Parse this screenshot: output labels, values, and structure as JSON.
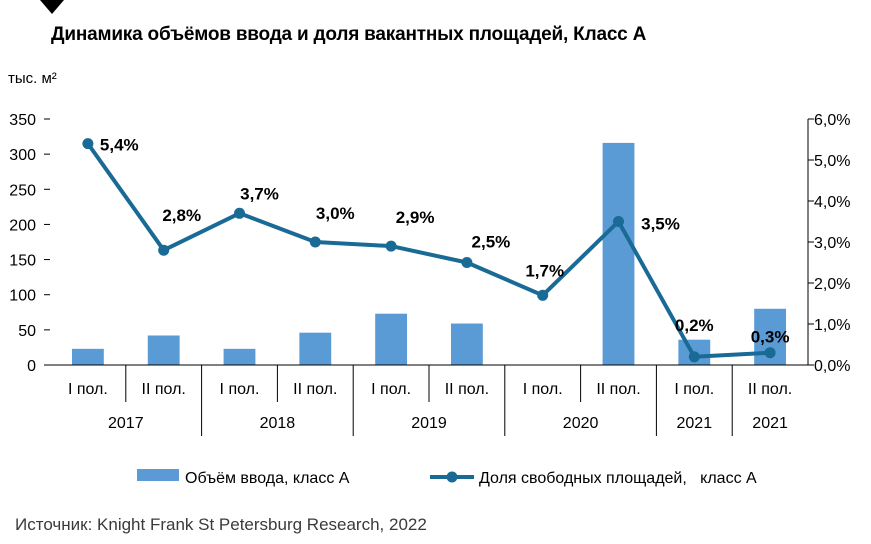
{
  "title": "Динамика объёмов ввода и доля вакантных площадей, Класс А",
  "unit_label": "тыс. м²",
  "source": "Источник: Knight Frank St Petersburg Research, 2022",
  "chart_data": {
    "type": "bar",
    "title": "Динамика объёмов ввода и доля вакантных площадей, Класс А",
    "categories": [
      "I пол.",
      "II пол.",
      "I пол.",
      "II пол.",
      "I пол.",
      "II пол.",
      "I пол.",
      "II пол.",
      "I пол.",
      "II пол."
    ],
    "groups": [
      {
        "label": "2017",
        "span": 2
      },
      {
        "label": "2018",
        "span": 2
      },
      {
        "label": "2019",
        "span": 2
      },
      {
        "label": "2020",
        "span": 2
      },
      {
        "label": "2021",
        "span": 1
      },
      {
        "label": "2021",
        "span": 1
      }
    ],
    "series": [
      {
        "name": "Объём ввода, класс А",
        "type": "bar",
        "axis": "left",
        "color": "#5b9bd5",
        "values": [
          23,
          42,
          23,
          46,
          73,
          59,
          0,
          316,
          36,
          80
        ]
      },
      {
        "name": "Доля свободных площадей,   класс А",
        "type": "line",
        "axis": "right",
        "color": "#1a6a96",
        "values": [
          5.4,
          2.8,
          3.7,
          3.0,
          2.9,
          2.5,
          1.7,
          3.5,
          0.2,
          0.3
        ],
        "labels": [
          "5,4%",
          "2,8%",
          "3,7%",
          "3,0%",
          "2,9%",
          "2,5%",
          "1,7%",
          "3,5%",
          "0,2%",
          "0,3%"
        ]
      }
    ],
    "y_left": {
      "min": 0,
      "max": 350,
      "ticks": [
        "0",
        "50",
        "100",
        "150",
        "200",
        "250",
        "300",
        "350"
      ]
    },
    "y_right": {
      "min": 0,
      "max": 6,
      "ticks": [
        "0,0%",
        "1,0%",
        "2,0%",
        "3,0%",
        "4,0%",
        "5,0%",
        "6,0%"
      ]
    },
    "grid": false,
    "legend_position": "bottom"
  }
}
